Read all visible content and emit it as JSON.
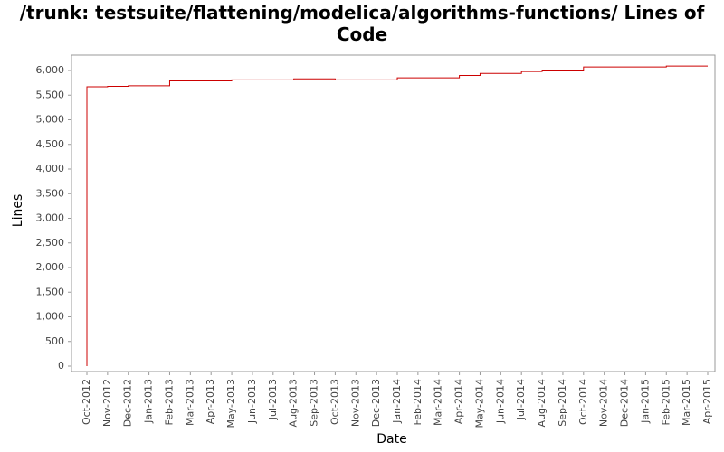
{
  "chart_data": {
    "type": "line",
    "step": true,
    "title": "/trunk: testsuite/flattening/modelica/algorithms-functions/ Lines of Code",
    "x_label": "Date",
    "y_label": "Lines",
    "series": [
      {
        "name": "Lines",
        "color": "#cc0000",
        "x": [
          "2012-10",
          "2012-10",
          "2012-11",
          "2012-12",
          "2013-02",
          "2013-05",
          "2013-08",
          "2013-10",
          "2014-01",
          "2014-04",
          "2014-05",
          "2014-07",
          "2014-08",
          "2014-10",
          "2015-02",
          "2015-04"
        ],
        "values": [
          0,
          5670,
          5680,
          5690,
          5790,
          5810,
          5830,
          5810,
          5850,
          5900,
          5940,
          5980,
          6010,
          6070,
          6090,
          6090
        ]
      }
    ],
    "xlim": [
      "2012-10",
      "2015-04"
    ],
    "xticks": [
      {
        "value": "2012-10",
        "label": "Oct-2012"
      },
      {
        "value": "2012-11",
        "label": "Nov-2012"
      },
      {
        "value": "2012-12",
        "label": "Dec-2012"
      },
      {
        "value": "2013-01",
        "label": "Jan-2013"
      },
      {
        "value": "2013-02",
        "label": "Feb-2013"
      },
      {
        "value": "2013-03",
        "label": "Mar-2013"
      },
      {
        "value": "2013-04",
        "label": "Apr-2013"
      },
      {
        "value": "2013-05",
        "label": "May-2013"
      },
      {
        "value": "2013-06",
        "label": "Jun-2013"
      },
      {
        "value": "2013-07",
        "label": "Jul-2013"
      },
      {
        "value": "2013-08",
        "label": "Aug-2013"
      },
      {
        "value": "2013-09",
        "label": "Sep-2013"
      },
      {
        "value": "2013-10",
        "label": "Oct-2013"
      },
      {
        "value": "2013-11",
        "label": "Nov-2013"
      },
      {
        "value": "2013-12",
        "label": "Dec-2013"
      },
      {
        "value": "2014-01",
        "label": "Jan-2014"
      },
      {
        "value": "2014-02",
        "label": "Feb-2014"
      },
      {
        "value": "2014-03",
        "label": "Mar-2014"
      },
      {
        "value": "2014-04",
        "label": "Apr-2014"
      },
      {
        "value": "2014-05",
        "label": "May-2014"
      },
      {
        "value": "2014-06",
        "label": "Jun-2014"
      },
      {
        "value": "2014-07",
        "label": "Jul-2014"
      },
      {
        "value": "2014-08",
        "label": "Aug-2014"
      },
      {
        "value": "2014-09",
        "label": "Sep-2014"
      },
      {
        "value": "2014-10",
        "label": "Oct-2014"
      },
      {
        "value": "2014-11",
        "label": "Nov-2014"
      },
      {
        "value": "2014-12",
        "label": "Dec-2014"
      },
      {
        "value": "2015-01",
        "label": "Jan-2015"
      },
      {
        "value": "2015-02",
        "label": "Feb-2015"
      },
      {
        "value": "2015-03",
        "label": "Mar-2015"
      },
      {
        "value": "2015-04",
        "label": "Apr-2015"
      }
    ],
    "ylim": [
      0,
      6000
    ],
    "yticks": [
      0,
      500,
      {
        "value": 1000,
        "label": "1,000"
      },
      {
        "value": 1500,
        "label": "1,500"
      },
      {
        "value": 2000,
        "label": "2,000"
      },
      {
        "value": 2500,
        "label": "2,500"
      },
      {
        "value": 3000,
        "label": "3,000"
      },
      {
        "value": 3500,
        "label": "3,500"
      },
      {
        "value": 4000,
        "label": "4,000"
      },
      {
        "value": 4500,
        "label": "4,500"
      },
      {
        "value": 5000,
        "label": "5,000"
      },
      {
        "value": 5500,
        "label": "5,500"
      },
      {
        "value": 6000,
        "label": "6,000"
      }
    ],
    "grid": false
  }
}
